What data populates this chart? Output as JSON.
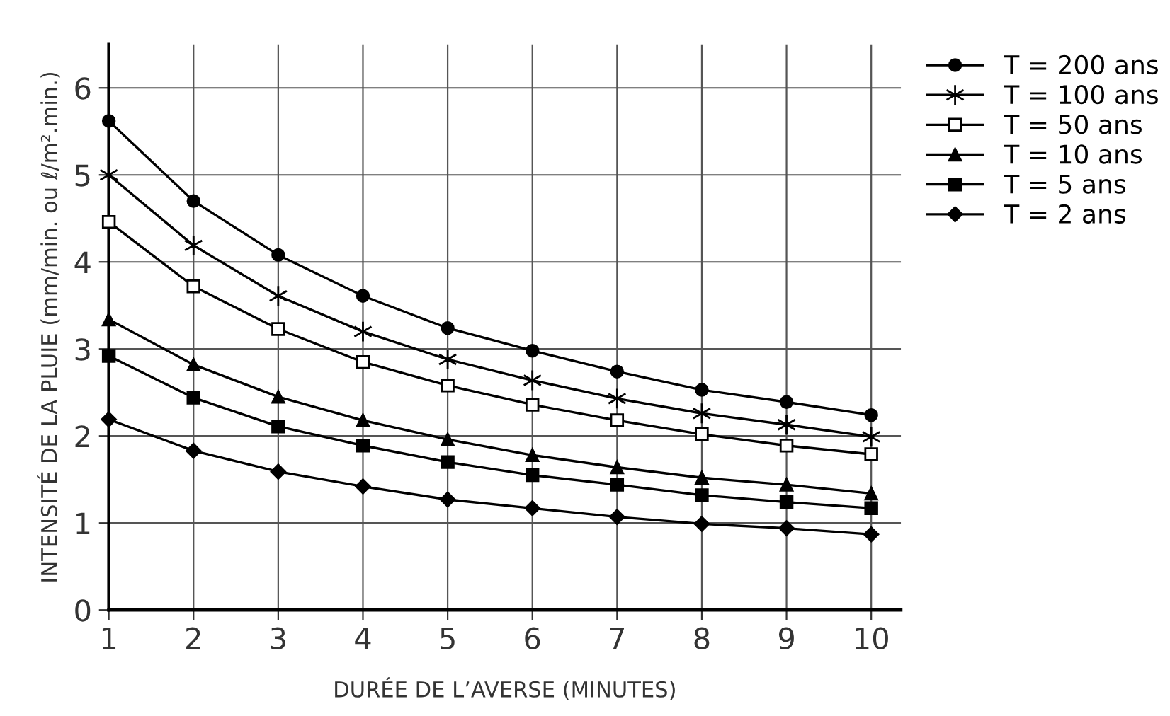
{
  "chart_data": {
    "type": "line",
    "xlabel": "DURÉE DE L’AVERSE (MINUTES)",
    "ylabel": "INTENSITÉ DE LA PLUIE (mm/min. ou ℓ/m².min.)",
    "x": [
      1,
      2,
      3,
      4,
      5,
      6,
      7,
      8,
      9,
      10
    ],
    "series": [
      {
        "name": "T = 200 ans",
        "color": "#000000",
        "marker": "circle",
        "values": [
          5.62,
          4.7,
          4.08,
          3.61,
          3.24,
          2.98,
          2.74,
          2.53,
          2.39,
          2.24
        ]
      },
      {
        "name": "T = 100 ans",
        "color": "#000000",
        "marker": "cross",
        "values": [
          5.0,
          4.19,
          3.61,
          3.2,
          2.88,
          2.64,
          2.43,
          2.26,
          2.13,
          1.99
        ]
      },
      {
        "name": "T = 50 ans",
        "color": "#ffffff",
        "marker": "square",
        "values": [
          4.46,
          3.72,
          3.23,
          2.85,
          2.58,
          2.36,
          2.18,
          2.02,
          1.89,
          1.79
        ]
      },
      {
        "name": "T = 10 ans",
        "color": "#000000",
        "marker": "triangle",
        "values": [
          3.34,
          2.82,
          2.45,
          2.18,
          1.96,
          1.78,
          1.64,
          1.52,
          1.44,
          1.34
        ]
      },
      {
        "name": "T = 5 ans",
        "color": "#000000",
        "marker": "square",
        "values": [
          2.92,
          2.44,
          2.11,
          1.89,
          1.7,
          1.55,
          1.44,
          1.32,
          1.24,
          1.17
        ]
      },
      {
        "name": "T = 2 ans",
        "color": "#000000",
        "marker": "diamond",
        "values": [
          2.19,
          1.83,
          1.59,
          1.42,
          1.27,
          1.17,
          1.07,
          0.99,
          0.94,
          0.87
        ]
      }
    ],
    "xlim": [
      1,
      10.35
    ],
    "ylim": [
      0,
      6.5
    ],
    "xticks": [
      1,
      2,
      3,
      4,
      5,
      6,
      7,
      8,
      9,
      10
    ],
    "yticks": [
      0,
      1,
      2,
      3,
      4,
      5,
      6
    ],
    "grid": true,
    "legend": "top right",
    "line_style": "solid"
  }
}
